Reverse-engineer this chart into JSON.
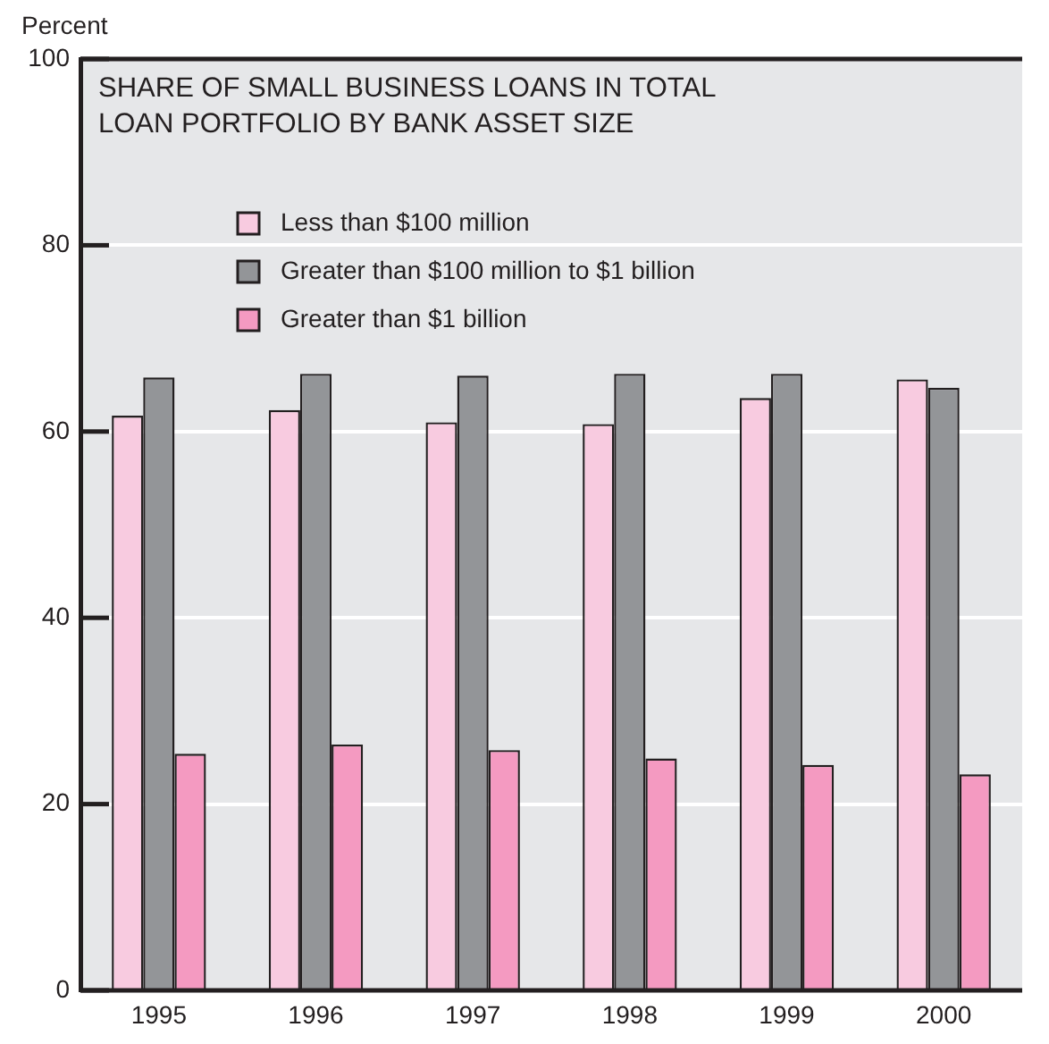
{
  "chart_data": {
    "type": "bar",
    "title": "SHARE OF SMALL BUSINESS LOANS IN TOTAL\nLOAN PORTFOLIO BY BANK ASSET SIZE",
    "ylabel": "Percent",
    "categories": [
      "1995",
      "1996",
      "1997",
      "1998",
      "1999",
      "2000"
    ],
    "series": [
      {
        "name": "Less than $100 million",
        "color": "#f8cbe0",
        "values": [
          61.7,
          62.3,
          61.0,
          60.8,
          63.6,
          65.6
        ]
      },
      {
        "name": "Greater than $100 million to $1 billion",
        "color": "#939598",
        "values": [
          65.8,
          66.2,
          66.0,
          66.2,
          66.2,
          64.7
        ]
      },
      {
        "name": "Greater than $1 billion",
        "color": "#f49ac1",
        "values": [
          25.4,
          26.4,
          25.8,
          24.9,
          24.2,
          23.2
        ]
      }
    ],
    "ylim": [
      0,
      100
    ],
    "yticks": [
      0,
      20,
      40,
      60,
      80,
      100
    ],
    "grid": "y",
    "legend": "top left"
  }
}
